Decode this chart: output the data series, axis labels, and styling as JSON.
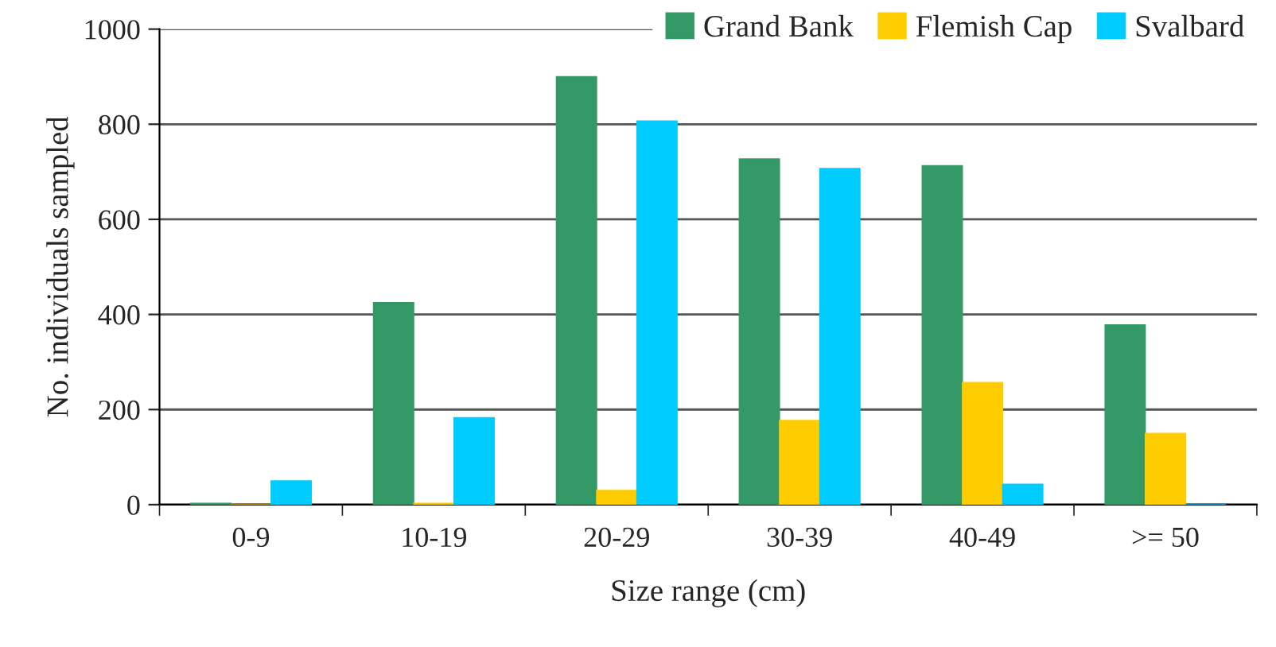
{
  "chart_data": {
    "type": "bar",
    "xlabel": "Size range (cm)",
    "ylabel": "No. individuals sampled",
    "categories": [
      "0-9",
      "10-19",
      "20-29",
      "30-39",
      "40-49",
      ">= 50"
    ],
    "series": [
      {
        "name": "Grand Bank",
        "color": "#339966",
        "values": [
          3,
          425,
          900,
          727,
          713,
          378
        ]
      },
      {
        "name": "Flemish Cap",
        "color": "#ffcc00",
        "values": [
          0,
          3,
          30,
          177,
          257,
          150
        ]
      },
      {
        "name": "Svalbard",
        "color": "#00ccff",
        "values": [
          50,
          183,
          807,
          707,
          43,
          0
        ]
      }
    ],
    "ylim": [
      0,
      1000
    ],
    "yticks": [
      0,
      200,
      400,
      600,
      800,
      1000
    ],
    "grid": "y",
    "legend": "top right"
  }
}
